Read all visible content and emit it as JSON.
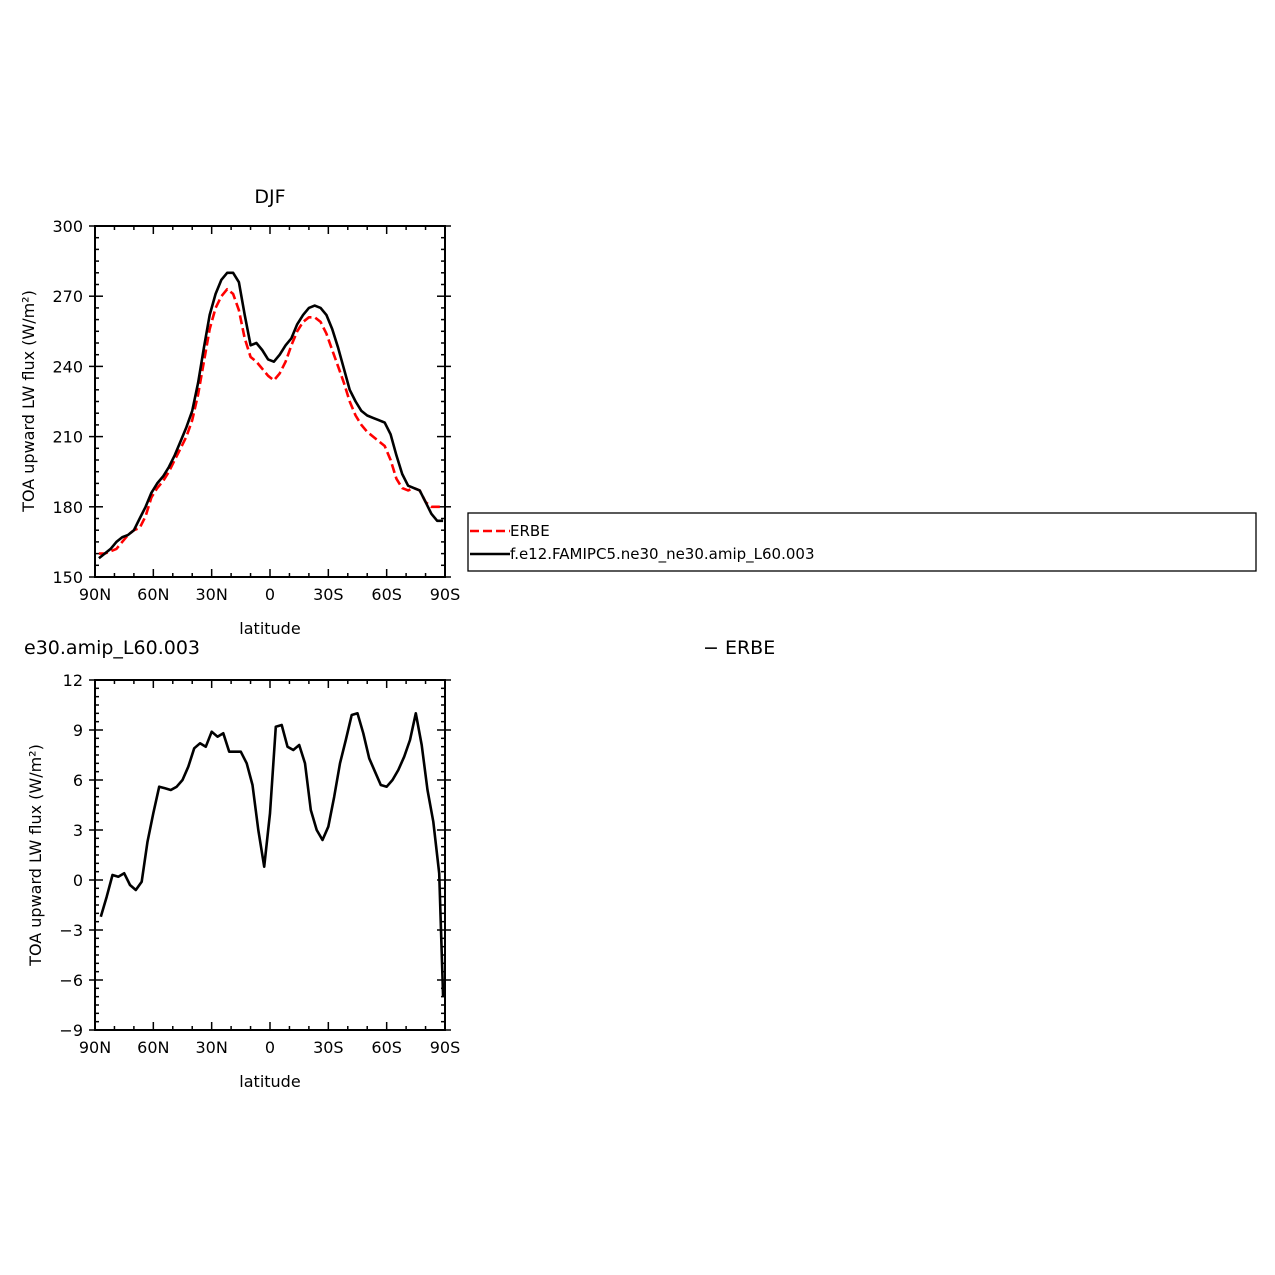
{
  "chart_data": [
    {
      "type": "line",
      "title": "DJF",
      "xlabel": "latitude",
      "ylabel": "TOA upward LW flux (W/m²)",
      "xlim": [
        90,
        -90
      ],
      "ylim": [
        150,
        300
      ],
      "xticks": [
        90,
        60,
        30,
        0,
        -30,
        -60,
        -90
      ],
      "xtick_labels": [
        "90N",
        "60N",
        "30N",
        "0",
        "30S",
        "60S",
        "90S"
      ],
      "yticks": [
        150,
        180,
        210,
        240,
        270,
        300
      ],
      "ytick_labels": [
        "150",
        "180",
        "210",
        "240",
        "270",
        "300"
      ],
      "legend_position": "right, outside plot",
      "series": [
        {
          "name": "ERBE",
          "color": "#ff0000",
          "dash": "dashed",
          "x": [
            88,
            85,
            82,
            79,
            76,
            73,
            70,
            67,
            64,
            61,
            58,
            55,
            52,
            49,
            46,
            43,
            40,
            37,
            34,
            31,
            28,
            25,
            22,
            19,
            16,
            13,
            10,
            7,
            4,
            1,
            -2,
            -5,
            -8,
            -11,
            -14,
            -17,
            -20,
            -23,
            -26,
            -29,
            -32,
            -35,
            -38,
            -41,
            -44,
            -47,
            -50,
            -53,
            -56,
            -59,
            -62,
            -65,
            -68,
            -71,
            -74,
            -77,
            -80,
            -83,
            -86,
            -89
          ],
          "values": [
            160,
            160,
            161,
            162,
            165,
            168,
            170,
            171,
            176,
            184,
            188,
            191,
            195,
            200,
            205,
            210,
            217,
            228,
            242,
            256,
            265,
            270,
            273,
            271,
            264,
            252,
            244,
            242,
            239,
            236,
            234,
            237,
            242,
            249,
            255,
            259,
            261,
            261,
            259,
            254,
            247,
            240,
            233,
            225,
            219,
            215,
            212,
            210,
            208,
            206,
            200,
            192,
            188,
            187,
            188,
            187,
            182,
            180,
            180,
            180
          ]
        },
        {
          "name": "f.e12.FAMIPC5.ne30_ne30.amip_L60.003",
          "color": "#000000",
          "dash": "solid",
          "x": [
            88,
            85,
            82,
            79,
            76,
            73,
            70,
            67,
            64,
            61,
            58,
            55,
            52,
            49,
            46,
            43,
            40,
            37,
            34,
            31,
            28,
            25,
            22,
            19,
            16,
            13,
            10,
            7,
            4,
            1,
            -2,
            -5,
            -8,
            -11,
            -14,
            -17,
            -20,
            -23,
            -26,
            -29,
            -32,
            -35,
            -38,
            -41,
            -44,
            -47,
            -50,
            -53,
            -56,
            -59,
            -62,
            -65,
            -68,
            -71,
            -74,
            -77,
            -80,
            -83,
            -86,
            -89
          ],
          "values": [
            158,
            160,
            162,
            165,
            167,
            168,
            170,
            175,
            180,
            186,
            190,
            193,
            197,
            202,
            208,
            214,
            221,
            233,
            248,
            262,
            271,
            277,
            280,
            280,
            276,
            262,
            249,
            250,
            247,
            243,
            242,
            245,
            249,
            252,
            258,
            262,
            265,
            266,
            265,
            262,
            256,
            248,
            239,
            230,
            225,
            221,
            219,
            218,
            217,
            216,
            211,
            202,
            194,
            189,
            188,
            187,
            182,
            177,
            174,
            174
          ]
        }
      ]
    },
    {
      "type": "line",
      "title": "e30.amip_L60.003 - ERBE",
      "title_left": "e30.amip_L60.003",
      "title_right": "− ERBE",
      "xlabel": "latitude",
      "ylabel": "TOA upward LW flux (W/m²)",
      "xlim": [
        90,
        -90
      ],
      "ylim": [
        -9,
        12
      ],
      "xticks": [
        90,
        60,
        30,
        0,
        -30,
        -60,
        -90
      ],
      "xtick_labels": [
        "90N",
        "60N",
        "30N",
        "0",
        "30S",
        "60S",
        "90S"
      ],
      "yticks": [
        -9,
        -6,
        -3,
        0,
        3,
        6,
        9,
        12
      ],
      "ytick_labels": [
        "−9",
        "−6",
        "−3",
        "0",
        "3",
        "6",
        "9",
        "12"
      ],
      "series": [
        {
          "color": "#000000",
          "dash": "solid",
          "x": [
            87,
            84,
            81,
            78,
            75,
            72,
            69,
            66,
            63,
            60,
            57,
            54,
            51,
            48,
            45,
            42,
            39,
            36,
            33,
            30,
            27,
            24,
            21,
            18,
            15,
            12,
            9,
            6,
            3,
            0,
            -3,
            -6,
            -9,
            -12,
            -15,
            -18,
            -21,
            -24,
            -27,
            -30,
            -33,
            -36,
            -39,
            -42,
            -45,
            -48,
            -51,
            -54,
            -57,
            -60,
            -63,
            -66,
            -69,
            -72,
            -75,
            -78,
            -81,
            -84,
            -87,
            -89
          ],
          "values": [
            -2.2,
            -1.0,
            0.3,
            0.2,
            0.4,
            -0.3,
            -0.6,
            -0.1,
            2.3,
            4.0,
            5.6,
            5.5,
            5.4,
            5.6,
            6.0,
            6.8,
            7.9,
            8.2,
            8.0,
            8.9,
            8.6,
            8.8,
            7.7,
            7.7,
            7.7,
            7.0,
            5.7,
            3.0,
            0.8,
            4.0,
            9.2,
            9.3,
            8.0,
            7.8,
            8.1,
            7.0,
            4.2,
            3.0,
            2.4,
            3.2,
            5.0,
            7.0,
            8.4,
            9.9,
            10.0,
            8.8,
            7.3,
            6.5,
            5.7,
            5.6,
            6.0,
            6.6,
            7.4,
            8.4,
            10.0,
            8.1,
            5.4,
            3.5,
            0.4,
            -7.0
          ]
        }
      ]
    }
  ]
}
